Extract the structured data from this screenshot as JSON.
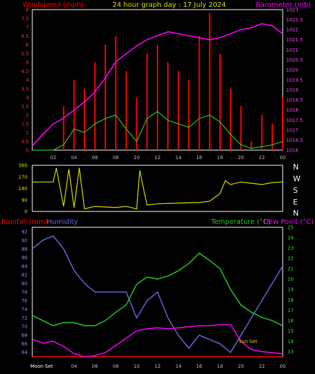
{
  "header": {
    "left_label": "Windspeed (mph)",
    "title": "24 hour graph day : 17 July 2024",
    "right_label": "Barometer (mb)"
  },
  "colors": {
    "windspeed": "#ff0000",
    "gust_fill": "#e8f4e0",
    "wind_avg": "#22cc22",
    "barometer": "#ff00ff",
    "direction": "#dddd00",
    "humidity": "#6666dd",
    "temperature": "#22cc22",
    "dewpoint": "#ff00ff",
    "rainfall": "#ff0000",
    "axis": "#ffffff",
    "tick_text": "#bbbbbb"
  },
  "bottom_header": {
    "rainfall": "Rainfall (mm)",
    "humidity": "Humidity",
    "temperature": "Temperature (°C)",
    "dewpoint": "Dew Point (°C)"
  },
  "annotations": {
    "moon_set": "Moon Set",
    "sun_set": "Sun Set"
  },
  "direction_labels": [
    "N",
    "W",
    "S",
    "E",
    "N"
  ],
  "chart_data": [
    {
      "type": "line",
      "id": "wind_pressure",
      "x_ticks": [
        "02",
        "04",
        "06",
        "08",
        "10",
        "12",
        "14",
        "16",
        "18",
        "20",
        "22",
        "00"
      ],
      "y_left_ticks": [
        "0",
        "0.5",
        "1",
        "1.5",
        "2",
        "2.5",
        "3",
        "3.5",
        "4",
        "4.5",
        "5",
        "5.5",
        "6",
        "6.5",
        "7",
        "7.5",
        "8"
      ],
      "y_right_ticks": [
        "1016",
        "1016.5",
        "1017",
        "1017.5",
        "1018",
        "1018.5",
        "1019",
        "1019.5",
        "1020",
        "1020.5",
        "1021",
        "1021.5",
        "1022",
        "1022.5",
        "1023"
      ],
      "ylim_left": [
        0,
        8
      ],
      "ylim_right": [
        1016,
        1023
      ],
      "xlim_hours": [
        0,
        24
      ],
      "series": [
        {
          "name": "Barometer (mb)",
          "axis": "right",
          "x": [
            0,
            1,
            2,
            3,
            4,
            5,
            6,
            7,
            8,
            9,
            10,
            11,
            12,
            13,
            14,
            15,
            16,
            17,
            18,
            19,
            20,
            21,
            22,
            23,
            24
          ],
          "y": [
            1016.2,
            1016.8,
            1017.3,
            1017.6,
            1018.0,
            1018.4,
            1018.9,
            1019.6,
            1020.4,
            1020.8,
            1021.2,
            1021.5,
            1021.7,
            1021.9,
            1021.8,
            1021.7,
            1021.6,
            1021.5,
            1021.6,
            1021.8,
            1022.0,
            1022.1,
            1022.3,
            1022.2,
            1021.8
          ]
        },
        {
          "name": "Average windspeed (mph)",
          "axis": "left",
          "x": [
            0,
            1,
            2,
            3,
            4,
            5,
            6,
            7,
            8,
            9,
            10,
            11,
            12,
            13,
            14,
            15,
            16,
            17,
            18,
            19,
            20,
            21,
            22,
            23,
            24
          ],
          "y": [
            0,
            0,
            0,
            0.3,
            1.2,
            1.0,
            1.5,
            1.8,
            2.0,
            1.2,
            0.5,
            1.8,
            2.2,
            1.7,
            1.5,
            1.3,
            1.8,
            2.0,
            1.6,
            0.9,
            0.3,
            0.1,
            0.2,
            0.3,
            0.5
          ]
        },
        {
          "name": "Windspeed (mph)",
          "axis": "left",
          "x": [
            0,
            1,
            2,
            3,
            4,
            5,
            6,
            7,
            8,
            9,
            10,
            11,
            12,
            13,
            14,
            15,
            16,
            17,
            18,
            19,
            20,
            21,
            22,
            23,
            24
          ],
          "y": [
            0,
            0,
            0,
            2.5,
            4.0,
            3.5,
            5.0,
            6.0,
            6.5,
            4.5,
            3.0,
            5.5,
            6.0,
            5.0,
            4.5,
            4.0,
            6.5,
            7.8,
            5.5,
            3.5,
            2.5,
            0.5,
            2.0,
            1.5,
            3.0
          ]
        }
      ]
    },
    {
      "type": "line",
      "id": "wind_direction",
      "y_ticks": [
        "0",
        "90",
        "180",
        "270",
        "360"
      ],
      "ylim": [
        0,
        360
      ],
      "xlim_hours": [
        0,
        24
      ],
      "series": [
        {
          "name": "Wind direction",
          "x": [
            0,
            2,
            2.3,
            3,
            3.5,
            4,
            4.5,
            5,
            6,
            8,
            9,
            10,
            10.3,
            10.6,
            11,
            12,
            14,
            16,
            17,
            18,
            18.5,
            19,
            20,
            21,
            22,
            23,
            24
          ],
          "y": [
            230,
            230,
            340,
            40,
            330,
            30,
            340,
            20,
            40,
            30,
            40,
            20,
            320,
            200,
            50,
            60,
            65,
            70,
            80,
            140,
            240,
            210,
            230,
            220,
            210,
            225,
            230
          ]
        }
      ]
    },
    {
      "type": "line",
      "id": "temp_humidity",
      "x_ticks": [
        "02",
        "04",
        "06",
        "08",
        "10",
        "12",
        "14",
        "16",
        "18",
        "20",
        "22",
        "00"
      ],
      "y_left_ticks": [
        "64",
        "66",
        "68",
        "70",
        "72",
        "74",
        "76",
        "78",
        "80",
        "82",
        "84",
        "86",
        "88",
        "90",
        "92"
      ],
      "y_right_ticks": [
        "13",
        "14",
        "15",
        "16",
        "17",
        "18",
        "19",
        "20",
        "21",
        "22",
        "23",
        "24",
        "25"
      ],
      "ylim_left": [
        63,
        93
      ],
      "ylim_right": [
        12.5,
        25
      ],
      "xlim_hours": [
        0,
        24
      ],
      "series": [
        {
          "name": "Humidity",
          "axis": "left",
          "x": [
            0,
            1,
            2,
            3,
            4,
            5,
            6,
            7,
            8,
            9,
            10,
            11,
            12,
            13,
            14,
            15,
            16,
            17,
            18,
            19,
            20,
            21,
            22,
            23,
            24
          ],
          "y": [
            88,
            90,
            91,
            88,
            83,
            80,
            78,
            78,
            78,
            78,
            72,
            76,
            78,
            72,
            68,
            65,
            68,
            67,
            66,
            64,
            68,
            72,
            76,
            80,
            84
          ]
        },
        {
          "name": "Temperature (°C)",
          "axis": "right",
          "x": [
            0,
            1,
            2,
            3,
            4,
            5,
            6,
            7,
            8,
            9,
            10,
            11,
            12,
            13,
            14,
            15,
            16,
            17,
            18,
            19,
            20,
            21,
            22,
            23,
            24
          ],
          "y": [
            16.5,
            16.0,
            15.5,
            15.8,
            15.8,
            15.5,
            15.5,
            16.0,
            16.8,
            17.5,
            19.5,
            20.2,
            20.0,
            20.3,
            20.8,
            21.5,
            22.5,
            21.8,
            21.0,
            19.0,
            17.5,
            16.8,
            16.3,
            16.0,
            15.5
          ]
        },
        {
          "name": "Dew Point (°C)",
          "axis": "right",
          "x": [
            0,
            1,
            2,
            3,
            4,
            5,
            6,
            7,
            8,
            9,
            10,
            11,
            12,
            13,
            14,
            15,
            16,
            17,
            18,
            19,
            20,
            21,
            22,
            23,
            24
          ],
          "y": [
            14.2,
            13.8,
            14.0,
            13.5,
            12.8,
            12.5,
            12.6,
            12.9,
            13.6,
            14.3,
            15.0,
            15.2,
            15.3,
            15.2,
            15.3,
            15.4,
            15.5,
            15.5,
            15.6,
            15.6,
            14.0,
            13.2,
            13.0,
            12.9,
            12.8
          ]
        },
        {
          "name": "Rainfall (mm)",
          "axis": "left",
          "x": [
            0,
            24
          ],
          "y": [
            63,
            63
          ]
        }
      ]
    }
  ]
}
